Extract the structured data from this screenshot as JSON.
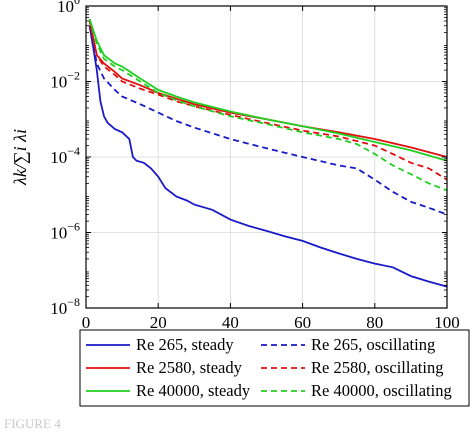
{
  "chart_data": {
    "type": "line",
    "title": "",
    "xlabel": "",
    "ylabel": "λk/∑i λi",
    "xlim": [
      0,
      100
    ],
    "ylim": [
      1e-08,
      1
    ],
    "yscale": "log",
    "grid": true,
    "legend": "bottom",
    "x_ticks": [
      0,
      20,
      40,
      60,
      80,
      100
    ],
    "y_ticks": [
      {
        "value": 1,
        "base": "10",
        "exp": "0"
      },
      {
        "value": 0.01,
        "base": "10",
        "exp": "−2"
      },
      {
        "value": 0.0001,
        "base": "10",
        "exp": "−4"
      },
      {
        "value": 1e-06,
        "base": "10",
        "exp": "−6"
      },
      {
        "value": 1e-08,
        "base": "10",
        "exp": "−8"
      }
    ],
    "series": [
      {
        "name": "Re 265, steady",
        "color": "#1a1ac8",
        "dash": "solid",
        "x": [
          1,
          2,
          3,
          4,
          5,
          6,
          8,
          10,
          12,
          13,
          14,
          16,
          18,
          20,
          22,
          25,
          28,
          30,
          35,
          40,
          45,
          50,
          55,
          60,
          65,
          70,
          75,
          80,
          85,
          90,
          95,
          100
        ],
        "y": [
          0.3,
          0.08,
          0.02,
          0.003,
          0.0012,
          0.0008,
          0.00055,
          0.00045,
          0.0003,
          0.0001,
          8e-05,
          7e-05,
          5e-05,
          3e-05,
          1.5e-05,
          9e-06,
          7e-06,
          5.5e-06,
          4e-06,
          2.2e-06,
          1.5e-06,
          1.1e-06,
          8e-07,
          6e-07,
          4e-07,
          2.8e-07,
          2e-07,
          1.5e-07,
          1.2e-07,
          7e-08,
          5e-08,
          3.7e-08
        ]
      },
      {
        "name": "Re 265, oscillating",
        "color": "#1a1ac8",
        "dash": "dashed",
        "x": [
          1,
          3,
          5,
          8,
          10,
          15,
          20,
          25,
          30,
          40,
          50,
          60,
          70,
          75,
          80,
          85,
          90,
          95,
          100
        ],
        "y": [
          0.3,
          0.03,
          0.012,
          0.006,
          0.004,
          0.0025,
          0.0015,
          0.0009,
          0.0006,
          0.0003,
          0.00017,
          0.0001,
          6e-05,
          5e-05,
          2.5e-05,
          1.2e-05,
          6.5e-06,
          4.5e-06,
          3e-06
        ]
      },
      {
        "name": "Re 2580, steady",
        "color": "#e01010",
        "dash": "solid",
        "x": [
          1,
          3,
          5,
          8,
          10,
          15,
          20,
          25,
          30,
          40,
          50,
          60,
          70,
          80,
          90,
          100
        ],
        "y": [
          0.4,
          0.05,
          0.03,
          0.018,
          0.012,
          0.008,
          0.005,
          0.0035,
          0.0025,
          0.0015,
          0.001,
          0.00065,
          0.00045,
          0.0003,
          0.00018,
          0.0001
        ]
      },
      {
        "name": "Re 2580, oscillating",
        "color": "#e01010",
        "dash": "dashed",
        "x": [
          1,
          3,
          5,
          8,
          10,
          15,
          20,
          25,
          30,
          40,
          50,
          60,
          70,
          80,
          85,
          90,
          95,
          100
        ],
        "y": [
          0.4,
          0.05,
          0.025,
          0.015,
          0.01,
          0.0065,
          0.0045,
          0.003,
          0.0022,
          0.0013,
          0.0008,
          0.0005,
          0.00035,
          0.0002,
          0.00012,
          7e-05,
          5e-05,
          2.5e-05
        ]
      },
      {
        "name": "Re 40000, steady",
        "color": "#20d020",
        "dash": "solid",
        "x": [
          1,
          3,
          5,
          8,
          10,
          15,
          20,
          25,
          30,
          40,
          50,
          60,
          70,
          80,
          90,
          100
        ],
        "y": [
          0.45,
          0.12,
          0.05,
          0.03,
          0.025,
          0.012,
          0.006,
          0.004,
          0.0028,
          0.0016,
          0.001,
          0.00065,
          0.00042,
          0.00025,
          0.00015,
          8e-05
        ]
      },
      {
        "name": "Re 40000, oscillating",
        "color": "#20d020",
        "dash": "dashed",
        "x": [
          1,
          3,
          5,
          8,
          10,
          15,
          20,
          25,
          30,
          40,
          50,
          60,
          70,
          75,
          80,
          85,
          90,
          95,
          100
        ],
        "y": [
          0.45,
          0.1,
          0.04,
          0.025,
          0.02,
          0.01,
          0.005,
          0.0032,
          0.0022,
          0.0012,
          0.00075,
          0.00045,
          0.0003,
          0.00022,
          0.00012,
          6e-05,
          3.5e-05,
          2e-05,
          1.3e-05
        ]
      }
    ]
  },
  "figure_caption": "FIGURE 4"
}
